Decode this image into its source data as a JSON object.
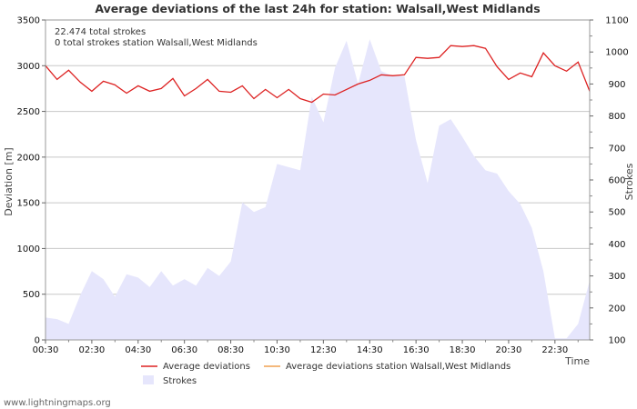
{
  "chart_data": {
    "type": "line+area",
    "title": "Average deviations of the last 24h for station: Walsall,West Midlands",
    "ylabel_left": "Deviation  [m]",
    "ylabel_right": "Strokes",
    "xlabel": "Time",
    "ylim_left": [
      0,
      3500
    ],
    "ylim_right": [
      100,
      1100
    ],
    "left_ticks": [
      0,
      500,
      1000,
      1500,
      2000,
      2500,
      3000,
      3500
    ],
    "right_ticks": [
      100,
      200,
      300,
      400,
      500,
      600,
      700,
      800,
      900,
      1000,
      1100
    ],
    "x_ticks": [
      "00:30",
      "02:30",
      "04:30",
      "06:30",
      "08:30",
      "10:30",
      "12:30",
      "14:30",
      "16:30",
      "18:30",
      "20:30",
      "22:30"
    ],
    "x_range_hours": [
      0.5,
      24.0
    ],
    "info_lines": [
      "22.474 total strokes",
      "0 total strokes station Walsall,West Midlands"
    ],
    "series": [
      {
        "name": "Average deviations",
        "color": "#dd2222",
        "axis": "left",
        "x": [
          0.5,
          1.0,
          1.5,
          2.0,
          2.5,
          3.0,
          3.5,
          4.0,
          4.5,
          5.0,
          5.5,
          6.0,
          6.5,
          7.0,
          7.5,
          8.0,
          8.5,
          9.0,
          9.5,
          10.0,
          10.5,
          11.0,
          11.5,
          12.0,
          12.5,
          13.0,
          13.5,
          14.0,
          14.5,
          15.0,
          15.5,
          16.0,
          16.5,
          17.0,
          17.5,
          18.0,
          18.5,
          19.0,
          19.5,
          20.0,
          20.5,
          21.0,
          21.5,
          22.0,
          22.5,
          23.0,
          23.5,
          24.0
        ],
        "values": [
          3000,
          2850,
          2950,
          2820,
          2720,
          2830,
          2790,
          2700,
          2780,
          2720,
          2750,
          2860,
          2670,
          2750,
          2850,
          2720,
          2710,
          2780,
          2640,
          2740,
          2650,
          2740,
          2640,
          2600,
          2690,
          2680,
          2740,
          2800,
          2840,
          2900,
          2890,
          2900,
          3090,
          3080,
          3090,
          3220,
          3210,
          3220,
          3190,
          2990,
          2850,
          2920,
          2880,
          3140,
          3000,
          2940,
          3040,
          2720
        ]
      },
      {
        "name": "Average deviations station Walsall,West Midlands",
        "color": "#f0a050",
        "axis": "left",
        "x": [],
        "values": []
      },
      {
        "name": "Strokes",
        "color": "#e6e6fc",
        "axis": "right",
        "type": "area",
        "x": [
          0.5,
          1.0,
          1.5,
          2.0,
          2.5,
          3.0,
          3.5,
          4.0,
          4.5,
          5.0,
          5.5,
          6.0,
          6.5,
          7.0,
          7.5,
          8.0,
          8.5,
          9.0,
          9.5,
          10.0,
          10.5,
          11.0,
          11.5,
          12.0,
          12.5,
          13.0,
          13.5,
          14.0,
          14.5,
          15.0,
          15.5,
          16.0,
          16.5,
          17.0,
          17.5,
          18.0,
          18.5,
          19.0,
          19.5,
          20.0,
          20.5,
          21.0,
          21.5,
          22.0,
          22.5,
          23.0,
          23.5,
          24.0
        ],
        "values": [
          170,
          165,
          150,
          240,
          315,
          290,
          235,
          305,
          295,
          265,
          315,
          270,
          290,
          270,
          325,
          300,
          345,
          530,
          500,
          515,
          650,
          640,
          630,
          860,
          780,
          950,
          1035,
          900,
          1040,
          940,
          925,
          925,
          725,
          590,
          770,
          790,
          735,
          675,
          630,
          620,
          565,
          525,
          450,
          315,
          105,
          105,
          150,
          285
        ]
      }
    ],
    "legend": [
      {
        "label": "Average deviations",
        "kind": "line",
        "color": "#dd2222"
      },
      {
        "label": "Average deviations station Walsall,West Midlands",
        "kind": "line",
        "color": "#f0a050"
      },
      {
        "label": "Strokes",
        "kind": "area",
        "color": "#e6e6fc"
      }
    ]
  },
  "footer": {
    "credit": "www.lightningmaps.org"
  }
}
